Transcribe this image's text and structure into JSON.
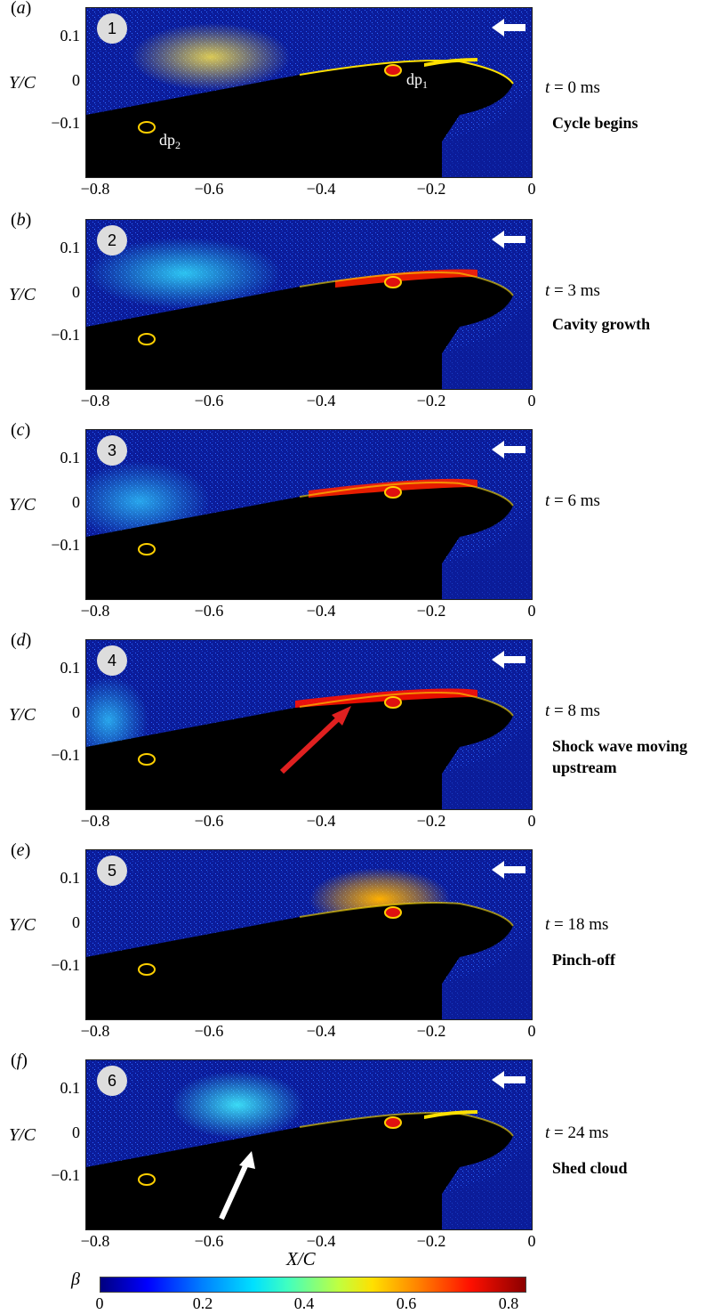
{
  "panels": [
    {
      "label": "a",
      "num": "1",
      "time": "0 ms",
      "caption": "Cycle begins",
      "sensors": [
        "dp",
        "1",
        "dp",
        "2"
      ]
    },
    {
      "label": "b",
      "num": "2",
      "time": "3 ms",
      "caption": "Cavity growth"
    },
    {
      "label": "c",
      "num": "3",
      "time": "6 ms",
      "caption": ""
    },
    {
      "label": "d",
      "num": "4",
      "time": "8 ms",
      "caption": "Shock wave moving upstream"
    },
    {
      "label": "e",
      "num": "5",
      "time": "18 ms",
      "caption": "Pinch-off"
    },
    {
      "label": "f",
      "num": "6",
      "time": "24 ms",
      "caption": "Shed cloud"
    }
  ],
  "axes": {
    "ylabel": "Y/C",
    "xlabel": "X/C",
    "yticks": [
      "0.1",
      "0",
      "−0.1"
    ],
    "xticks": [
      "−0.8",
      "−0.6",
      "−0.4",
      "−0.2",
      "0"
    ],
    "time_prefix": "t ="
  },
  "colorbar": {
    "label": "β",
    "ticks": [
      "0",
      "0.2",
      "0.4",
      "0.6",
      "0.8"
    ]
  }
}
